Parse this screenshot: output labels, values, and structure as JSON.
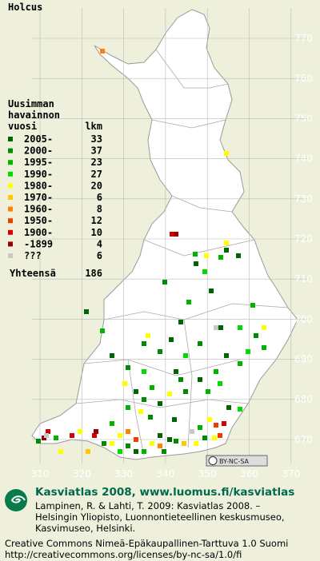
{
  "title": "Holcus",
  "legend": {
    "heading": [
      "Uusimman",
      "havainnon",
      "vuosi"
    ],
    "count_heading": "lkm",
    "items": [
      {
        "label": "2005-",
        "count": 33,
        "color": "#006400"
      },
      {
        "label": "2000-",
        "count": 37,
        "color": "#008c00"
      },
      {
        "label": "1995-",
        "count": 23,
        "color": "#00b400"
      },
      {
        "label": "1990-",
        "count": 27,
        "color": "#00dc00"
      },
      {
        "label": "1980-",
        "count": 20,
        "color": "#ffff00"
      },
      {
        "label": "1970-",
        "count": 6,
        "color": "#ffc800"
      },
      {
        "label": "1960-",
        "count": 8,
        "color": "#ff8200"
      },
      {
        "label": "1950-",
        "count": 12,
        "color": "#f03c00"
      },
      {
        "label": "1900-",
        "count": 10,
        "color": "#d20000"
      },
      {
        "label": "-1899",
        "count": 4,
        "color": "#960000"
      },
      {
        "label": "???",
        "count": 6,
        "color": "#c8c8c8"
      }
    ],
    "total_label": "Yhteensä",
    "total": 186
  },
  "grid": {
    "x_labels": [
      310,
      320,
      330,
      340,
      350,
      360,
      370
    ],
    "y_labels": [
      770,
      760,
      750,
      740,
      730,
      720,
      710,
      700,
      690,
      680,
      670
    ]
  },
  "license_badge": "BY-NC-SA",
  "footer": {
    "heading": "Kasviatlas 2008, www.luomus.fi/kasviatlas",
    "citation": [
      "Lampinen, R. & Lahti, T. 2009: Kasviatlas 2008. –",
      "Helsingin Yliopisto, Luonnontieteellinen keskusmuseo,",
      "Kasvimuseo, Helsinki."
    ],
    "license": [
      "Creative Commons Nimeä-Epäkaupallinen-Tarttuva 1.0 Suomi",
      "http://creativecommons.org/licenses/by-nc-sa/1.0/fi"
    ]
  }
}
